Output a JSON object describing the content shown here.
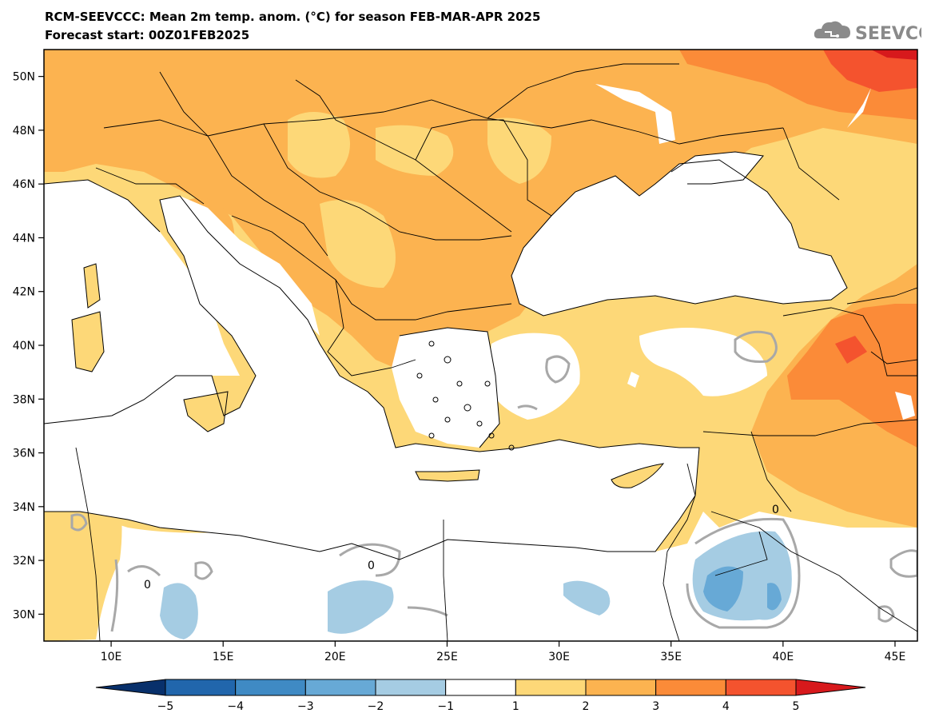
{
  "header": {
    "title": "RCM-SEEVCCC: Mean 2m temp. anom. (°C) for season FEB-MAR-APR 2025",
    "subtitle": "Forecast start: 00Z01FEB2025",
    "logo_text": "SEEVCCC",
    "logo_icon": "cloud-icon"
  },
  "map": {
    "lat_labels": [
      "50N",
      "48N",
      "46N",
      "44N",
      "42N",
      "40N",
      "38N",
      "36N",
      "34N",
      "32N",
      "30N"
    ],
    "lon_labels": [
      "10E",
      "15E",
      "20E",
      "25E",
      "30E",
      "35E",
      "40E",
      "45E"
    ],
    "lat_range": [
      29,
      51
    ],
    "lon_range": [
      7,
      46
    ],
    "contour_labels": [
      "0",
      "0",
      "0"
    ]
  },
  "colorbar": {
    "tick_labels": [
      "-5",
      "-4",
      "-3",
      "-2",
      "-1",
      "1",
      "2",
      "3",
      "4",
      "5"
    ],
    "colors": [
      "#08306b",
      "#2166ac",
      "#3f8ac4",
      "#67a9d6",
      "#a5cce3",
      "#ffffff",
      "#fdd878",
      "#fcb350",
      "#fb8b38",
      "#f4532e",
      "#d7191c"
    ]
  }
}
